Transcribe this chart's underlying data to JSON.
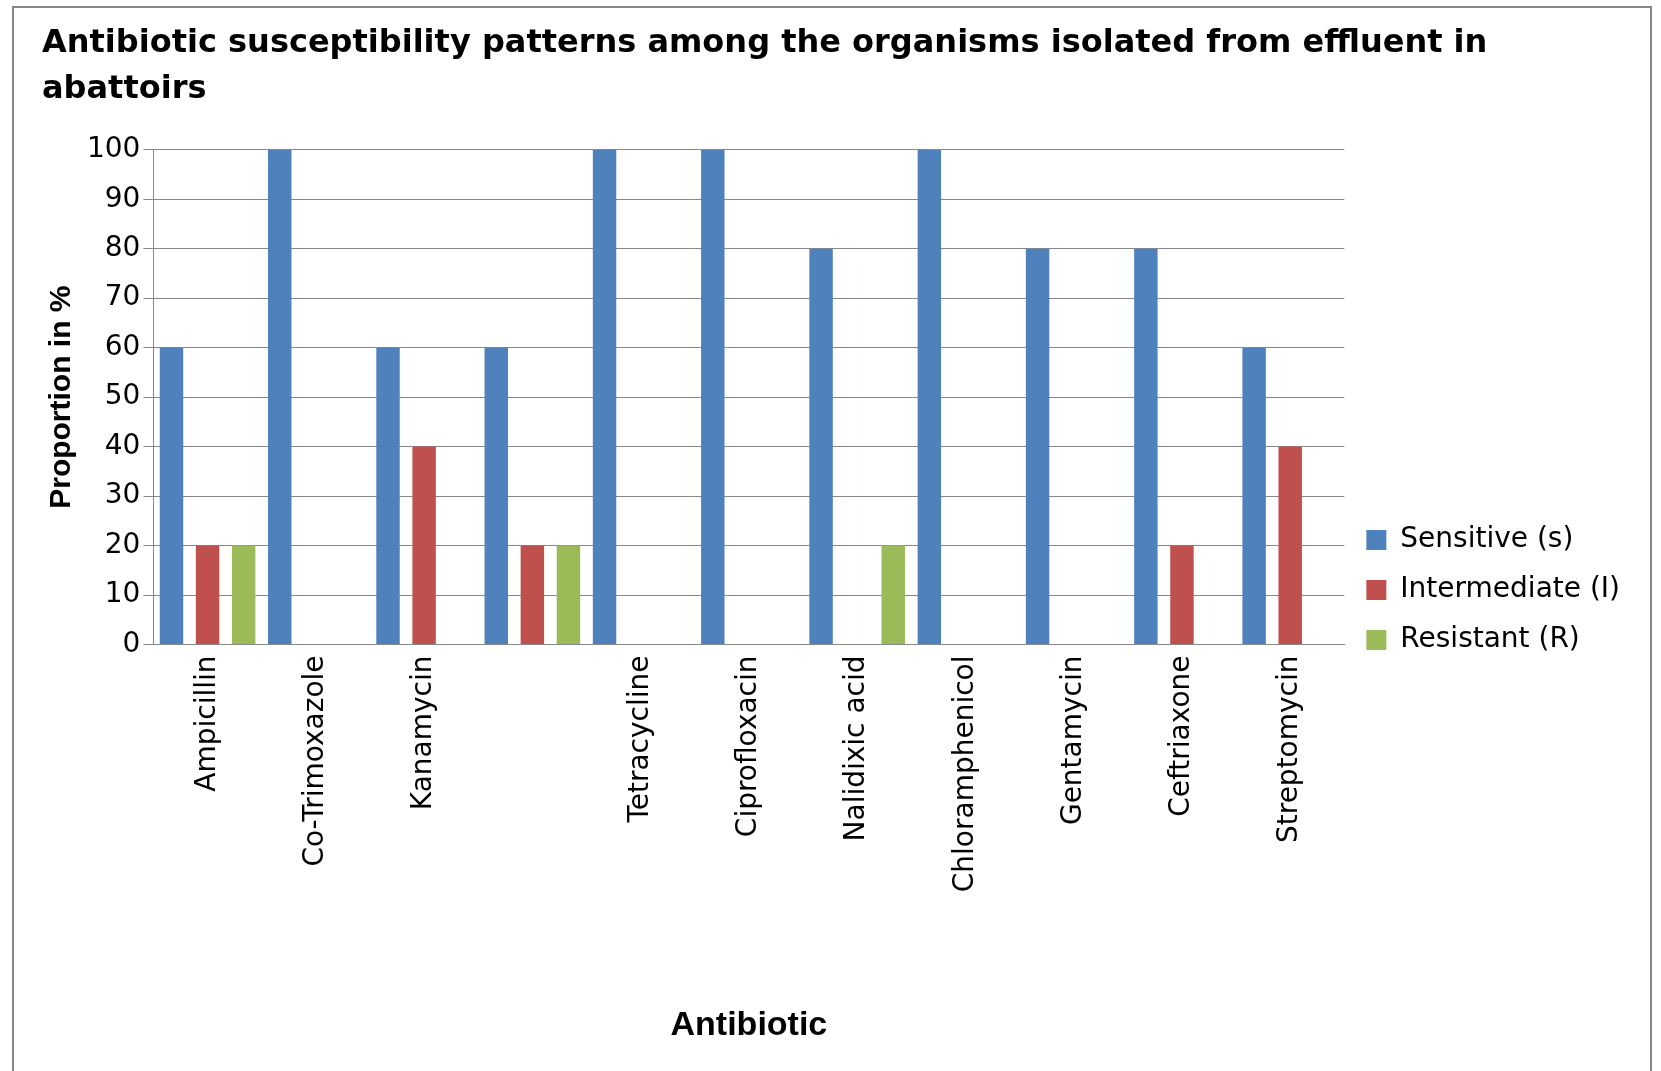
{
  "chart_data": {
    "type": "bar",
    "title": "Antibiotic susceptibility patterns among the organisms isolated from effluent in abattoirs",
    "xlabel": "Antibiotic",
    "ylabel": "Proportion in %",
    "categories": [
      "Ampicillin",
      "Co-Trimoxazole",
      "Kanamycin",
      null,
      "Tetracycline",
      "Ciprofloxacin",
      "Nalidixic acid",
      "Chloramphenicol",
      "Gentamycin",
      "Ceftriaxone",
      "Streptomycin"
    ],
    "series": [
      {
        "name": "Sensitive (s)",
        "color": "#4f81bd",
        "values": [
          60,
          100,
          60,
          60,
          100,
          100,
          80,
          100,
          80,
          80,
          60
        ]
      },
      {
        "name": "Intermediate (I)",
        "color": "#c0504d",
        "values": [
          20,
          0,
          40,
          20,
          0,
          0,
          0,
          0,
          0,
          20,
          40
        ]
      },
      {
        "name": "Resistant (R)",
        "color": "#9bbb59",
        "values": [
          20,
          0,
          0,
          20,
          0,
          0,
          20,
          0,
          0,
          0,
          0
        ]
      }
    ],
    "ylim": [
      0,
      100
    ],
    "yticks": [
      0,
      10,
      20,
      30,
      40,
      50,
      60,
      70,
      80,
      90,
      100
    ],
    "grid": "y",
    "legend": "right"
  }
}
